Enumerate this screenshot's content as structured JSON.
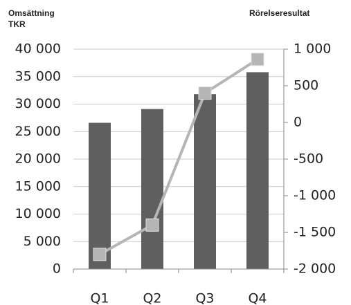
{
  "chart_data": {
    "type": "bar_line",
    "ylabel": [
      "Omsättning",
      "TKR"
    ],
    "y2label": "Rörelseresultat",
    "categories": [
      "Q1",
      "Q2",
      "Q3",
      "Q4"
    ],
    "series": [
      {
        "type": "bar",
        "color": "#5f5f5f",
        "values": [
          26600,
          29100,
          31800,
          35800
        ]
      },
      {
        "type": "line",
        "axis": "y2",
        "color": "#b5b5b5",
        "values": [
          -1800,
          -1400,
          400,
          860
        ]
      }
    ],
    "ylim": [
      0,
      40000
    ],
    "yticks": [
      0,
      {
        "value": 5000,
        "label": "5 000"
      },
      {
        "value": 10000,
        "label": "10 000"
      },
      {
        "value": 15000,
        "label": "15 000"
      },
      {
        "value": 20000,
        "label": "20 000"
      },
      {
        "value": 25000,
        "label": "25 000"
      },
      {
        "value": 30000,
        "label": "30 000"
      },
      {
        "value": 35000,
        "label": "35 000"
      },
      {
        "value": 40000,
        "label": "40 000"
      }
    ],
    "y2lim": [
      -2000,
      1000
    ],
    "y2ticks": [
      {
        "value": -2000,
        "label": "-2 000"
      },
      {
        "value": -1500,
        "label": "-1 500"
      },
      {
        "value": -1000,
        "label": "-1 000"
      },
      -500,
      0,
      500,
      {
        "value": 1000,
        "label": "1 000"
      }
    ],
    "grid": true
  }
}
